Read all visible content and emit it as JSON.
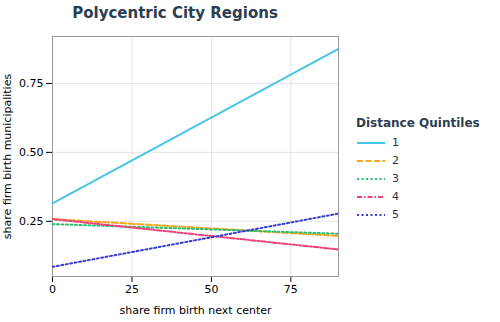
{
  "chart_data": {
    "type": "line",
    "title": "Polycentric City Regions",
    "xlabel": "share firm birth next center",
    "ylabel": "share firm birth municipalities",
    "legend_title": "Distance Quintiles",
    "legend": "right",
    "grid": true,
    "x": [
      0,
      90
    ],
    "series": [
      {
        "name": "1",
        "color": "#48C4E8",
        "line_style": "solid",
        "values": [
          0.315,
          0.875
        ]
      },
      {
        "name": "2",
        "color": "#F5A623",
        "line_style": "dashed",
        "values": [
          0.258,
          0.197
        ]
      },
      {
        "name": "3",
        "color": "#2DBD6E",
        "line_style": "dotted",
        "values": [
          0.24,
          0.205
        ]
      },
      {
        "name": "4",
        "color": "#E8427A",
        "line_style": "dashdot",
        "values": [
          0.258,
          0.148
        ]
      },
      {
        "name": "5",
        "color": "#3B3BCC",
        "line_style": "dotted",
        "values": [
          0.085,
          0.278
        ]
      }
    ],
    "xlim": [
      0,
      90
    ],
    "ylim": [
      0.05,
      0.92
    ],
    "xticks": [
      0,
      25,
      50,
      75
    ],
    "yticks": [
      0.25,
      {
        "value": 0.5,
        "label": "0.50"
      },
      0.75
    ]
  }
}
